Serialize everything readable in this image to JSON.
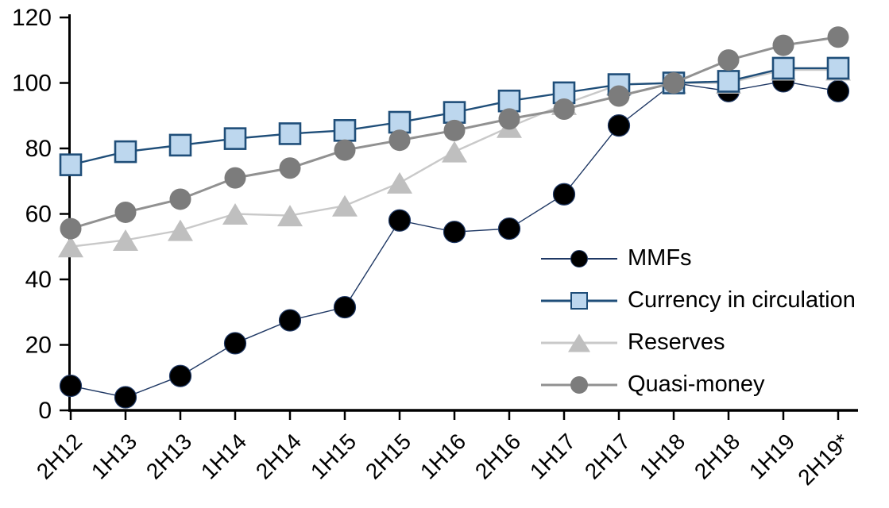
{
  "chart_data": {
    "type": "line",
    "title": "",
    "xlabel": "",
    "ylabel": "",
    "categories": [
      "2H12",
      "1H13",
      "2H13",
      "1H14",
      "2H14",
      "1H15",
      "2H15",
      "1H16",
      "2H16",
      "1H17",
      "2H17",
      "1H18",
      "2H18",
      "1H19",
      "2H19*"
    ],
    "yticks": [
      0,
      20,
      40,
      60,
      80,
      100,
      120
    ],
    "ylim": [
      0,
      120
    ],
    "grid": false,
    "legend_position": "inside-right",
    "axis_color": "#000000",
    "series": [
      {
        "name": "MMFs",
        "marker": "circle",
        "line_color": "#1F3864",
        "marker_fill": "#000000",
        "marker_stroke": "#1F3864",
        "values": [
          7.5,
          4,
          10.5,
          20.5,
          27.5,
          31.5,
          58,
          54.5,
          55.5,
          66,
          87,
          100,
          97.5,
          100.5,
          97.5
        ]
      },
      {
        "name": "Currency in circulation",
        "marker": "square",
        "line_color": "#1F4E79",
        "marker_fill": "#BDD7EE",
        "marker_stroke": "#1F4E79",
        "values": [
          75,
          79,
          81,
          83,
          84.5,
          85.5,
          88,
          91,
          94.5,
          97,
          99.5,
          100,
          100.5,
          104.5,
          104.5
        ]
      },
      {
        "name": "Reserves",
        "marker": "triangle",
        "line_color": "#C9C9C9",
        "marker_fill": "#BFBFBF",
        "marker_stroke": "none",
        "values": [
          50,
          52,
          55,
          60,
          59.5,
          62.5,
          69.5,
          79,
          86.5,
          93.5,
          99.5,
          100,
          100,
          104,
          104
        ]
      },
      {
        "name": "Quasi-money",
        "marker": "circle",
        "line_color": "#919191",
        "marker_fill": "#7C7C7C",
        "marker_stroke": "none",
        "values": [
          55.5,
          60.5,
          64.5,
          71,
          74,
          79.5,
          82.5,
          85.5,
          89,
          92,
          96,
          100,
          107,
          111.5,
          114
        ]
      }
    ]
  }
}
